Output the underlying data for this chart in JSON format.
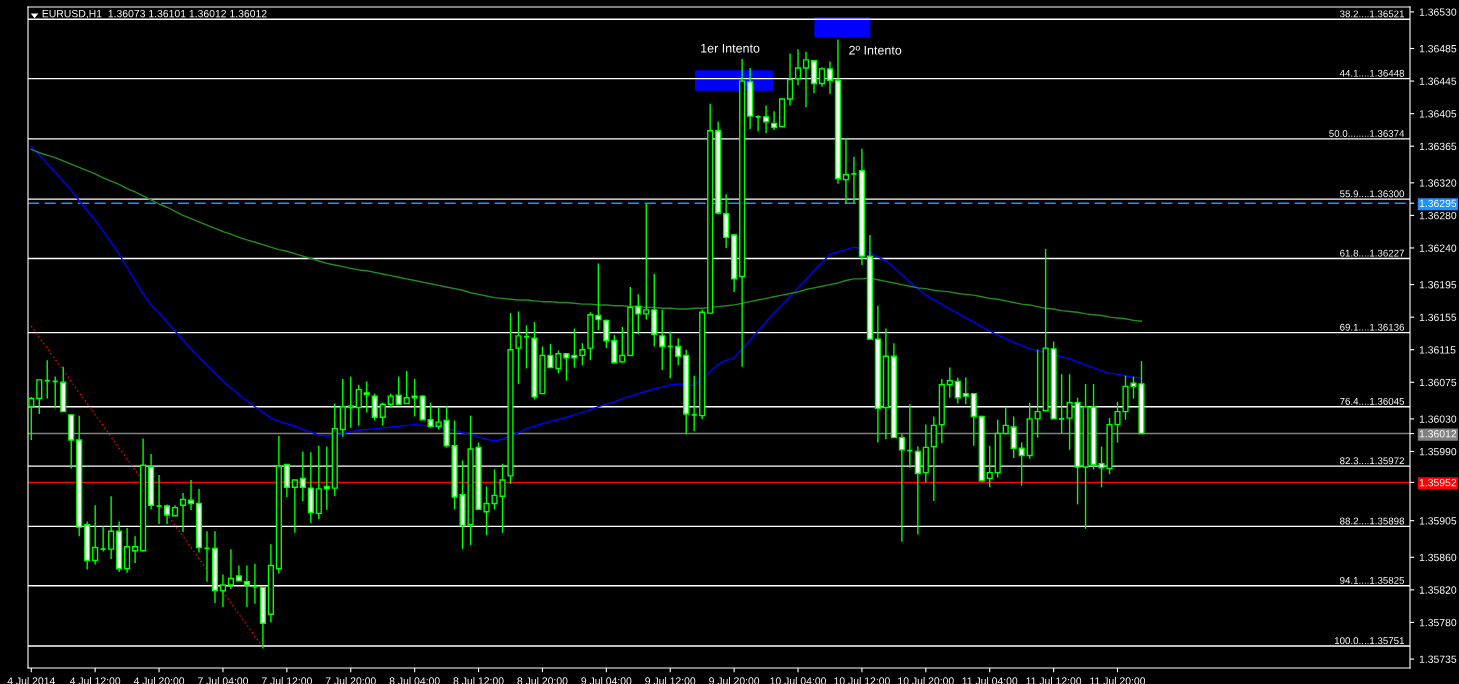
{
  "chart_data": {
    "type": "candlestick",
    "title": "EURUSD,H1  1.36073 1.36101 1.36012 1.36012",
    "categories": [
      "4 Jul 2014",
      null,
      null,
      null,
      null,
      null,
      null,
      null,
      "4 Jul 12:00",
      null,
      null,
      null,
      null,
      null,
      null,
      null,
      "4 Jul 20:00",
      null,
      null,
      null,
      null,
      null,
      null,
      null,
      "7 Jul 04:00",
      null,
      null,
      null,
      null,
      null,
      null,
      null,
      "7 Jul 12:00",
      null,
      null,
      null,
      null,
      null,
      null,
      null,
      "7 Jul 20:00",
      null,
      null,
      null,
      null,
      null,
      null,
      null,
      "8 Jul 04:00",
      null,
      null,
      null,
      null,
      null,
      null,
      null,
      "8 Jul 12:00",
      null,
      null,
      null,
      null,
      null,
      null,
      null,
      "8 Jul 20:00",
      null,
      null,
      null,
      null,
      null,
      null,
      null,
      "9 Jul 04:00",
      null,
      null,
      null,
      null,
      null,
      null,
      null,
      "9 Jul 12:00",
      null,
      null,
      null,
      null,
      null,
      null,
      null,
      "9 Jul 20:00",
      null,
      null,
      null,
      null,
      null,
      null,
      null,
      "10 Jul 04:00",
      null,
      null,
      null,
      null,
      null,
      null,
      null,
      "10 Jul 12:00",
      null,
      null,
      null,
      null,
      null,
      null,
      null,
      "10 Jul 20:00",
      null,
      null,
      null,
      null,
      null,
      null,
      null,
      "11 Jul 04:00",
      null,
      null,
      null,
      null,
      null,
      null,
      null,
      "11 Jul 12:00",
      null,
      null,
      null,
      null,
      null,
      null,
      null,
      "11 Jul 20:00",
      null,
      null,
      null
    ],
    "series": [
      {
        "color": "#00ff00",
        "ohlc": [
          [
            1.36045,
            1.36057,
            1.36004,
            1.36055
          ],
          [
            1.36055,
            1.36078,
            1.36036,
            1.36078
          ],
          [
            1.36077,
            1.36102,
            1.36055,
            1.36077
          ],
          [
            1.36076,
            1.36082,
            1.36043,
            1.36076
          ],
          [
            1.36075,
            1.36094,
            1.36039,
            1.36039
          ],
          [
            1.36035,
            1.36035,
            1.35969,
            1.36004
          ],
          [
            1.36004,
            1.36034,
            1.35886,
            1.35897
          ],
          [
            1.359,
            1.35904,
            1.35845,
            1.35856
          ],
          [
            1.35856,
            1.35924,
            1.35851,
            1.35872
          ],
          [
            1.3587,
            1.35898,
            1.35867,
            1.3587
          ],
          [
            1.3587,
            1.35935,
            1.35858,
            1.35892
          ],
          [
            1.35892,
            1.35904,
            1.35842,
            1.35846
          ],
          [
            1.35846,
            1.35896,
            1.35841,
            1.35873
          ],
          [
            1.35868,
            1.35886,
            1.35853,
            1.35873
          ],
          [
            1.35868,
            1.36006,
            1.35868,
            1.35973
          ],
          [
            1.35971,
            1.35987,
            1.35919,
            1.35924
          ],
          [
            1.35923,
            1.35961,
            1.35901,
            1.35923
          ],
          [
            1.35923,
            1.35925,
            1.35901,
            1.35912
          ],
          [
            1.35911,
            1.35924,
            1.35911,
            1.35921
          ],
          [
            1.35924,
            1.35939,
            1.35891,
            1.35931
          ],
          [
            1.3593,
            1.35955,
            1.35918,
            1.35926
          ],
          [
            1.35926,
            1.35944,
            1.35866,
            1.35872
          ],
          [
            1.35871,
            1.35892,
            1.3583,
            1.35871
          ],
          [
            1.35871,
            1.35892,
            1.35804,
            1.35819
          ],
          [
            1.35819,
            1.35839,
            1.35799,
            1.35826
          ],
          [
            1.35826,
            1.3587,
            1.35821,
            1.35834
          ],
          [
            1.35837,
            1.3585,
            1.35831,
            1.35831
          ],
          [
            1.3583,
            1.3585,
            1.35799,
            1.35826
          ],
          [
            1.35824,
            1.35852,
            1.35803,
            1.35824
          ],
          [
            1.35823,
            1.35823,
            1.35748,
            1.35779
          ],
          [
            1.3579,
            1.35876,
            1.3578,
            1.3585
          ],
          [
            1.35846,
            1.36009,
            1.3584,
            1.35972
          ],
          [
            1.35974,
            1.35974,
            1.35934,
            1.35946
          ],
          [
            1.35946,
            1.35955,
            1.3589,
            1.35955
          ],
          [
            1.35957,
            1.3599,
            1.35929,
            1.35946
          ],
          [
            1.35945,
            1.35989,
            1.35902,
            1.35915
          ],
          [
            1.35914,
            1.35997,
            1.35907,
            1.35944
          ],
          [
            1.35947,
            1.35996,
            1.35918,
            1.35944
          ],
          [
            1.35945,
            1.36049,
            1.35935,
            1.36018
          ],
          [
            1.36017,
            1.36079,
            1.36008,
            1.36045
          ],
          [
            1.36044,
            1.36082,
            1.36019,
            1.36046
          ],
          [
            1.36044,
            1.36072,
            1.36022,
            1.36066
          ],
          [
            1.36062,
            1.36076,
            1.36038,
            1.3606
          ],
          [
            1.36058,
            1.36061,
            1.36028,
            1.36032
          ],
          [
            1.36032,
            1.3605,
            1.36022,
            1.36048
          ],
          [
            1.36048,
            1.36061,
            1.36044,
            1.36058
          ],
          [
            1.36059,
            1.36082,
            1.36047,
            1.36048
          ],
          [
            1.36049,
            1.36089,
            1.36049,
            1.36056
          ],
          [
            1.36058,
            1.36079,
            1.36033,
            1.36056
          ],
          [
            1.36058,
            1.36059,
            1.36029,
            1.36029
          ],
          [
            1.36029,
            1.3605,
            1.36019,
            1.36021
          ],
          [
            1.36021,
            1.36044,
            1.36017,
            1.36026
          ],
          [
            1.36028,
            1.36046,
            1.35995,
            1.35997
          ],
          [
            1.35997,
            1.36028,
            1.35919,
            1.35934
          ],
          [
            1.35937,
            1.35979,
            1.3587,
            1.35899
          ],
          [
            1.359,
            1.36034,
            1.35875,
            1.35993
          ],
          [
            1.35995,
            1.36001,
            1.35919,
            1.35919
          ],
          [
            1.35916,
            1.35947,
            1.35887,
            1.35926
          ],
          [
            1.35926,
            1.35968,
            1.35919,
            1.35936
          ],
          [
            1.35935,
            1.35975,
            1.3589,
            1.35955
          ],
          [
            1.3596,
            1.3616,
            1.3595,
            1.36115
          ],
          [
            1.36117,
            1.36162,
            1.36073,
            1.36132
          ],
          [
            1.36131,
            1.36145,
            1.36092,
            1.36131
          ],
          [
            1.36129,
            1.36149,
            1.36054,
            1.36057
          ],
          [
            1.36061,
            1.36119,
            1.36061,
            1.36108
          ],
          [
            1.36108,
            1.36122,
            1.36093,
            1.36093
          ],
          [
            1.36092,
            1.36114,
            1.36086,
            1.3611
          ],
          [
            1.3611,
            1.3611,
            1.36077,
            1.36105
          ],
          [
            1.36108,
            1.36141,
            1.36093,
            1.36105
          ],
          [
            1.36108,
            1.36123,
            1.36096,
            1.36115
          ],
          [
            1.36117,
            1.36161,
            1.36102,
            1.36158
          ],
          [
            1.36157,
            1.36221,
            1.36139,
            1.36152
          ],
          [
            1.36151,
            1.36152,
            1.36117,
            1.36126
          ],
          [
            1.36126,
            1.36133,
            1.36098,
            1.36099
          ],
          [
            1.361,
            1.36143,
            1.36099,
            1.36108
          ],
          [
            1.36108,
            1.36192,
            1.36107,
            1.36167
          ],
          [
            1.36168,
            1.36183,
            1.36134,
            1.36159
          ],
          [
            1.36159,
            1.36294,
            1.36152,
            1.36164
          ],
          [
            1.36164,
            1.36208,
            1.36119,
            1.36134
          ],
          [
            1.36132,
            1.36164,
            1.3609,
            1.36119
          ],
          [
            1.36119,
            1.36137,
            1.3608,
            1.36119
          ],
          [
            1.36119,
            1.36129,
            1.36096,
            1.36107
          ],
          [
            1.36108,
            1.36115,
            1.36011,
            1.36036
          ],
          [
            1.36035,
            1.36083,
            1.36015,
            1.36035
          ],
          [
            1.36034,
            1.36164,
            1.3603,
            1.36161
          ],
          [
            1.3616,
            1.36417,
            1.3616,
            1.36384
          ],
          [
            1.36384,
            1.36395,
            1.36281,
            1.36283
          ],
          [
            1.36282,
            1.36306,
            1.3624,
            1.36253
          ],
          [
            1.36256,
            1.36257,
            1.36186,
            1.36202
          ],
          [
            1.36205,
            1.36472,
            1.36094,
            1.36445
          ],
          [
            1.36444,
            1.36461,
            1.36386,
            1.36402
          ],
          [
            1.36401,
            1.36403,
            1.36383,
            1.36401
          ],
          [
            1.36401,
            1.36415,
            1.36381,
            1.36395
          ],
          [
            1.36393,
            1.36408,
            1.36385,
            1.36388
          ],
          [
            1.36389,
            1.36423,
            1.36389,
            1.36423
          ],
          [
            1.36423,
            1.36479,
            1.36415,
            1.36447
          ],
          [
            1.36448,
            1.36484,
            1.3644,
            1.36461
          ],
          [
            1.36461,
            1.36481,
            1.36413,
            1.36471
          ],
          [
            1.3647,
            1.3647,
            1.3643,
            1.36442
          ],
          [
            1.36442,
            1.36462,
            1.36438,
            1.3646
          ],
          [
            1.3646,
            1.36469,
            1.36429,
            1.36446
          ],
          [
            1.36446,
            1.36496,
            1.36319,
            1.36325
          ],
          [
            1.36324,
            1.36375,
            1.36294,
            1.3633
          ],
          [
            1.36331,
            1.36352,
            1.36295,
            1.36331
          ],
          [
            1.36335,
            1.36362,
            1.36219,
            1.3623
          ],
          [
            1.3623,
            1.36256,
            1.36128,
            1.36128
          ],
          [
            1.36128,
            1.36169,
            1.36001,
            1.36043
          ],
          [
            1.36044,
            1.36141,
            1.36005,
            1.36107
          ],
          [
            1.36107,
            1.36123,
            1.36007,
            1.36007
          ],
          [
            1.36007,
            1.36011,
            1.35879,
            1.35992
          ],
          [
            1.35991,
            1.36048,
            1.3597,
            1.35991
          ],
          [
            1.3599,
            1.35996,
            1.35888,
            1.35963
          ],
          [
            1.35964,
            1.36023,
            1.35952,
            1.35995
          ],
          [
            1.35996,
            1.36033,
            1.35929,
            1.36022
          ],
          [
            1.36023,
            1.36079,
            1.36,
            1.36072
          ],
          [
            1.36072,
            1.36093,
            1.36056,
            1.36077
          ],
          [
            1.36076,
            1.36081,
            1.36049,
            1.36056
          ],
          [
            1.36061,
            1.36081,
            1.36048,
            1.36058
          ],
          [
            1.36061,
            1.36061,
            1.35997,
            1.36033
          ],
          [
            1.36033,
            1.36034,
            1.35953,
            1.35954
          ],
          [
            1.35957,
            1.35997,
            1.35946,
            1.35964
          ],
          [
            1.35964,
            1.36029,
            1.35958,
            1.36012
          ],
          [
            1.36012,
            1.36045,
            1.36012,
            1.36022
          ],
          [
            1.3602,
            1.36033,
            1.35982,
            1.35994
          ],
          [
            1.35994,
            1.36001,
            1.35948,
            1.35985
          ],
          [
            1.35985,
            1.3605,
            1.35981,
            1.3603
          ],
          [
            1.3603,
            1.36115,
            1.36007,
            1.36039
          ],
          [
            1.3604,
            1.36239,
            1.3604,
            1.36117
          ],
          [
            1.36116,
            1.36125,
            1.3603,
            1.3603
          ],
          [
            1.3603,
            1.36085,
            1.36012,
            1.3603
          ],
          [
            1.36031,
            1.36085,
            1.35992,
            1.3605
          ],
          [
            1.3605,
            1.36056,
            1.35925,
            1.35971
          ],
          [
            1.35971,
            1.36073,
            1.35895,
            1.36045
          ],
          [
            1.36045,
            1.36073,
            1.35968,
            1.35974
          ],
          [
            1.35975,
            1.35996,
            1.35946,
            1.3597
          ],
          [
            1.35969,
            1.36031,
            1.35962,
            1.36023
          ],
          [
            1.36023,
            1.36051,
            1.36001,
            1.36039
          ],
          [
            1.36039,
            1.36083,
            1.36029,
            1.3607
          ],
          [
            1.36074,
            1.36082,
            1.36055,
            1.3607
          ],
          [
            1.36073,
            1.36101,
            1.36012,
            1.36012
          ]
        ]
      },
      {
        "type": "line",
        "color": "#0000ff",
        "values": [
          1.36365,
          1.36354,
          1.36343,
          1.36333,
          1.36322,
          1.36311,
          1.36298,
          1.36286,
          1.36274,
          1.36261,
          1.36247,
          1.36232,
          1.36216,
          1.362,
          1.36184,
          1.3617,
          1.3616,
          1.36149,
          1.36138,
          1.36127,
          1.36116,
          1.36106,
          1.36096,
          1.36086,
          1.36076,
          1.36068,
          1.3606,
          1.36052,
          1.36045,
          1.36038,
          1.36031,
          1.36027,
          1.36024,
          1.36021,
          1.36017,
          1.36014,
          1.3601,
          1.36009,
          1.3601,
          1.36012,
          1.36014,
          1.36016,
          1.36017,
          1.36018,
          1.36019,
          1.3602,
          1.36021,
          1.36022,
          1.36023,
          1.36022,
          1.36021,
          1.3602,
          1.36018,
          1.36016,
          1.36013,
          1.36011,
          1.36008,
          1.36005,
          1.36003,
          1.36005,
          1.36009,
          1.36013,
          1.36018,
          1.36021,
          1.36024,
          1.36027,
          1.36029,
          1.36032,
          1.36035,
          1.36038,
          1.36041,
          1.36045,
          1.36048,
          1.36051,
          1.36055,
          1.36058,
          1.36061,
          1.36064,
          1.36067,
          1.36069,
          1.36072,
          1.36073,
          1.36072,
          1.36071,
          1.3608,
          1.36088,
          1.36097,
          1.36102,
          1.36105,
          1.36116,
          1.36127,
          1.36138,
          1.36149,
          1.3616,
          1.3617,
          1.3618,
          1.36191,
          1.36201,
          1.36212,
          1.36222,
          1.36232,
          1.36235,
          1.36238,
          1.36241,
          1.36239,
          1.36234,
          1.36229,
          1.36224,
          1.36216,
          1.36207,
          1.36198,
          1.3619,
          1.36182,
          1.36176,
          1.36171,
          1.36165,
          1.3616,
          1.36154,
          1.36149,
          1.36143,
          1.36138,
          1.36133,
          1.36129,
          1.36124,
          1.3612,
          1.36116,
          1.36114,
          1.36111,
          1.36109,
          1.36106,
          1.36104,
          1.361,
          1.36096,
          1.36093,
          1.36089,
          1.36086,
          1.36085,
          1.36083,
          1.36081,
          1.3608
        ]
      },
      {
        "type": "line",
        "color": "#228b22",
        "values": [
          1.36361,
          1.36357,
          1.36354,
          1.36351,
          1.36347,
          1.36343,
          1.36339,
          1.36335,
          1.36331,
          1.36326,
          1.36322,
          1.36318,
          1.36313,
          1.36309,
          1.36304,
          1.36299,
          1.36294,
          1.3629,
          1.36285,
          1.3628,
          1.36276,
          1.36272,
          1.36268,
          1.36264,
          1.3626,
          1.36257,
          1.36253,
          1.3625,
          1.36247,
          1.36244,
          1.36241,
          1.36238,
          1.36236,
          1.36233,
          1.3623,
          1.36227,
          1.36224,
          1.36221,
          1.36219,
          1.36217,
          1.36215,
          1.36213,
          1.36212,
          1.3621,
          1.36208,
          1.36206,
          1.36204,
          1.36202,
          1.362,
          1.36198,
          1.36196,
          1.36194,
          1.36192,
          1.3619,
          1.36188,
          1.36185,
          1.36183,
          1.36181,
          1.36179,
          1.36178,
          1.36177,
          1.36176,
          1.36176,
          1.36175,
          1.36174,
          1.36174,
          1.36173,
          1.36173,
          1.36172,
          1.36171,
          1.36171,
          1.3617,
          1.3617,
          1.36169,
          1.36169,
          1.36168,
          1.36168,
          1.36167,
          1.36167,
          1.36166,
          1.36166,
          1.36165,
          1.36165,
          1.36166,
          1.36166,
          1.36167,
          1.36168,
          1.36169,
          1.3617,
          1.36172,
          1.36174,
          1.36176,
          1.36178,
          1.3618,
          1.36182,
          1.36184,
          1.36186,
          1.36189,
          1.36191,
          1.36193,
          1.36195,
          1.36197,
          1.362,
          1.36202,
          1.36202,
          1.36203,
          1.36201,
          1.36199,
          1.36197,
          1.36195,
          1.36193,
          1.36191,
          1.3619,
          1.36188,
          1.36187,
          1.36186,
          1.36184,
          1.36183,
          1.36182,
          1.3618,
          1.36178,
          1.36177,
          1.36175,
          1.36173,
          1.36171,
          1.3617,
          1.36168,
          1.36166,
          1.36165,
          1.36163,
          1.36162,
          1.36161,
          1.36159,
          1.36158,
          1.36157,
          1.36155,
          1.36154,
          1.36153,
          1.36151,
          1.3615
        ]
      },
      {
        "type": "line",
        "color": "#ff0000",
        "line_style": "dotted",
        "values": [
          1.36144,
          1.3613,
          1.36117,
          1.36103,
          1.3609,
          1.36076,
          1.36062,
          1.36049,
          1.36035,
          1.36022,
          1.36008,
          1.35994,
          1.35981,
          1.35967,
          1.35954,
          null,
          1.35926,
          1.35913,
          1.35899,
          1.35886,
          1.35872,
          1.35858,
          1.35845,
          null,
          1.35818,
          1.35804,
          1.3579,
          1.35777,
          1.35763,
          1.3575,
          null,
          null,
          null,
          null,
          null,
          null,
          null,
          null,
          null,
          null,
          null,
          null,
          null,
          null,
          null,
          null,
          null,
          null,
          null,
          null,
          null,
          null,
          null,
          null,
          null,
          null,
          null,
          null,
          null,
          null,
          null,
          null,
          null,
          null,
          null,
          null,
          null,
          null,
          null,
          null,
          null,
          null,
          null,
          null,
          null,
          null,
          null,
          null,
          null,
          null,
          null,
          null,
          null,
          null,
          null,
          null,
          null,
          null,
          null,
          null,
          null,
          null,
          null,
          null,
          null,
          null,
          null,
          null,
          null,
          null,
          null,
          null,
          null,
          null,
          null,
          null,
          null,
          null,
          null,
          null,
          null,
          null,
          null,
          null,
          null,
          null,
          null,
          null,
          null,
          null,
          null,
          null,
          null,
          null,
          null,
          null,
          null,
          null,
          null,
          null,
          null,
          null,
          null,
          null,
          null,
          null,
          null,
          null,
          null,
          null
        ]
      }
    ],
    "ylim": [
      1.35724,
      1.36536
    ],
    "yticks": [
      {
        "value": 1.3653,
        "label": "1.36530"
      },
      1.36485,
      1.36445,
      {
        "value": 1.36405,
        "label": "1.36405"
      },
      1.36365,
      {
        "value": 1.3632,
        "label": "1.36320"
      },
      {
        "value": 1.36295,
        "label": "1.36295"
      },
      {
        "value": 1.3628,
        "label": "1.36280"
      },
      {
        "value": 1.3624,
        "label": "1.36240"
      },
      1.36195,
      1.36155,
      1.36115,
      1.36075,
      {
        "value": 1.3603,
        "label": "1.36030"
      },
      1.36012,
      {
        "value": 1.3599,
        "label": "1.35990"
      },
      1.35952,
      1.35905,
      {
        "value": 1.3586,
        "label": "1.35860"
      },
      {
        "value": 1.3582,
        "label": "1.35820"
      },
      {
        "value": 1.3578,
        "label": "1.35780"
      },
      1.35735
    ],
    "ref_lines": [
      {
        "axis": "y",
        "value": 1.36521,
        "label": "38.2....1.36521",
        "color": "#ffffff"
      },
      {
        "axis": "y",
        "value": 1.36448,
        "label": "44.1....1.36448",
        "color": "#ffffff"
      },
      {
        "axis": "y",
        "value": 1.36374,
        "label": "50.0........1.36374",
        "color": "#ffffff"
      },
      {
        "axis": "y",
        "value": 1.363,
        "label": "55.9....1.36300",
        "color": "#ffffff"
      },
      {
        "axis": "y",
        "value": 1.36227,
        "label": "61.8....1.36227",
        "color": "#ffffff"
      },
      {
        "axis": "y",
        "value": 1.36136,
        "label": "69.1....1.36136",
        "color": "#ffffff"
      },
      {
        "axis": "y",
        "value": 1.36045,
        "label": "76.4....1.36045",
        "color": "#ffffff"
      },
      {
        "axis": "y",
        "value": 1.35972,
        "label": "82.3....1.35972",
        "color": "#ffffff"
      },
      {
        "axis": "y",
        "value": 1.35898,
        "label": "88.2....1.35898",
        "color": "#ffffff"
      },
      {
        "axis": "y",
        "value": 1.35825,
        "label": "94.1....1.35825",
        "color": "#ffffff"
      },
      {
        "axis": "y",
        "value": 1.35751,
        "label": "100.0....1.35751",
        "color": "#ffffff"
      },
      {
        "axis": "y",
        "value": 1.36295,
        "color": "#1e90ff",
        "line_style": "dashed"
      },
      {
        "axis": "y",
        "value": 1.36012,
        "color": "#808080"
      },
      {
        "axis": "y",
        "value": 1.35952,
        "color": "#ff0000"
      }
    ],
    "annotations": [
      "1er Intento",
      "2º Intento"
    ]
  }
}
